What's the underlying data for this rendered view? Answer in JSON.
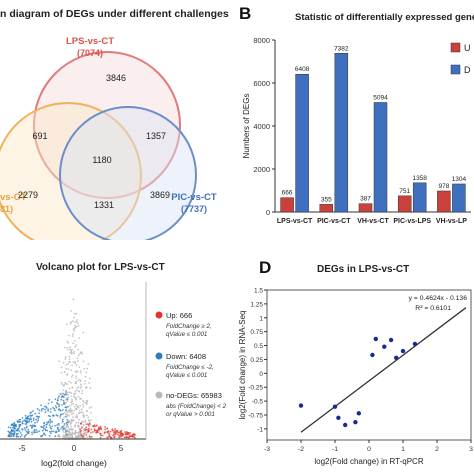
{
  "colors": {
    "red": "#c9403c",
    "blue": "#3f6fbf",
    "venn_red": "#e07b7b",
    "venn_blue": "#6b8fc9",
    "venn_orange": "#f0b25a",
    "volcano_gray": "#b9b9b9",
    "volcano_up": "#e2342b",
    "volcano_down": "#2f7fbf"
  },
  "panelA": {
    "title": "n diagram of DEGs under different challenges",
    "sets": [
      {
        "name": "LPS-vs-CT",
        "total": "(7074)"
      },
      {
        "name": "vs-CT",
        "total": "81)"
      },
      {
        "name": "PIC-vs-CT",
        "total": "(7737)"
      }
    ],
    "regions": {
      "lps_only": "3846",
      "lps_vh": "691",
      "lps_pic": "1357",
      "all": "1180",
      "vh_only": "2279",
      "pic_only": "3869",
      "vh_pic": "1331"
    }
  },
  "panelB": {
    "letter": "B",
    "title": "Statistic of  differentially expressed gene",
    "legend": [
      "U",
      "D"
    ],
    "chart_data": {
      "type": "bar",
      "title": "Statistic of  differentially expressed gene",
      "ylabel": "Numbers of DEGs",
      "ylim": [
        0,
        8000
      ],
      "yticks": [
        "0",
        "2000",
        "4000",
        "6000",
        "8000"
      ],
      "categories": [
        "LPS-vs-CT",
        "PIC-vs-CT",
        "VH-vs-CT",
        "PIC-vs-LPS",
        "VH-vs-LP"
      ],
      "series": [
        {
          "name": "U",
          "values": [
            666,
            355,
            387,
            751,
            978
          ]
        },
        {
          "name": "D",
          "values": [
            6408,
            7382,
            5094,
            1358,
            1304
          ]
        }
      ],
      "labels": [
        [
          "666",
          "355",
          "387",
          "751",
          "978"
        ],
        [
          "6408",
          "7382",
          "5094",
          "1358",
          "1304"
        ]
      ],
      "grid": false,
      "legend_position": "top-right"
    }
  },
  "panelC": {
    "title": "Volcano plot for LPS-vs-CT",
    "xlabel": "log2(fold change)",
    "xticks": [
      "-5",
      "0",
      "5"
    ],
    "legend": [
      {
        "head": "Up: 666",
        "l1": "FoldChange ≥ 2,",
        "l2": "qValue ≤ 0.001"
      },
      {
        "head": "Down: 6408",
        "l1": "FoldChange ≤ -2,",
        "l2": "qValue ≤ 0.001"
      },
      {
        "head": "no-DEGs: 65983",
        "l1": "abs (FoldChange) < 2",
        "l2": "or qValue > 0.001"
      }
    ]
  },
  "panelD": {
    "letter": "D",
    "title": "DEGs in LPS-vs-CT",
    "chart_data": {
      "type": "scatter",
      "title": "DEGs in LPS-vs-CT",
      "xlabel": "log2(Fold change) in RT-qPCR",
      "ylabel": "log2(Fold change) in RNA-Seq",
      "xlim": [
        -3,
        3
      ],
      "ylim": [
        -1.2,
        1.5
      ],
      "xticks": [
        "-3",
        "-2",
        "-1",
        "0",
        "1",
        "2",
        "3"
      ],
      "yticks": [
        "-1",
        "-0.75",
        "-0.5",
        "-0.25",
        "0",
        "0.25",
        "0.5",
        "0.75",
        "1",
        "1.25",
        "1.5"
      ],
      "x": [
        -2.0,
        -1.0,
        -0.9,
        -0.7,
        -0.4,
        -0.3,
        0.1,
        0.2,
        0.45,
        0.65,
        0.8,
        1.0,
        1.35
      ],
      "y": [
        -0.58,
        -0.6,
        -0.8,
        -0.93,
        -0.88,
        -0.72,
        0.33,
        0.62,
        0.48,
        0.6,
        0.28,
        0.4,
        0.53
      ],
      "equation": "y = 0.4624x - 0.136",
      "r2": "R² = 0.6101",
      "trendline": {
        "slope": 0.4624,
        "intercept": -0.136
      }
    }
  }
}
